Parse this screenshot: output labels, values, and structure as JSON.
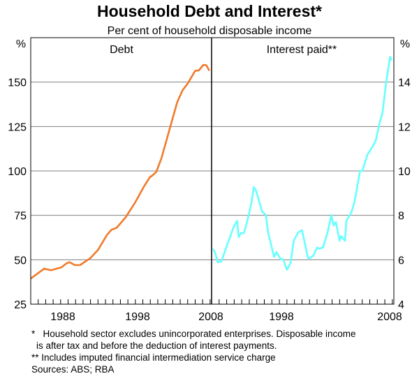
{
  "chart_data": [
    {
      "type": "line",
      "title": "Household Debt and Interest*",
      "subtitle": "Per cent of household disposable income",
      "panel_label": "Debt",
      "ylabel": "%",
      "ylim": [
        25,
        175
      ],
      "yticks": [
        25,
        50,
        75,
        100,
        125,
        150
      ],
      "xlim": [
        1984.5,
        2008.7
      ],
      "xtick_labels": [
        "1988",
        "1998",
        "2008"
      ],
      "grid": true,
      "color": "#F07A2A",
      "series": [
        {
          "name": "Debt",
          "x": [
            1984.5,
            1986.3,
            1987.2,
            1988.6,
            1989.3,
            1989.7,
            1990.4,
            1991.1,
            1992.5,
            1993.5,
            1994.7,
            1995.3,
            1996.0,
            1997.2,
            1998.5,
            1999.7,
            2000.5,
            2000.6,
            2001.3,
            2002.0,
            2002.7,
            2003.4,
            2004.1,
            2004.8,
            2005.5,
            2006.5,
            2007.0,
            2007.6,
            2008.0,
            2008.4
          ],
          "y": [
            39.4,
            45.0,
            44.1,
            45.7,
            48.0,
            48.6,
            47.0,
            47.0,
            51.0,
            55.5,
            64.0,
            66.9,
            68.0,
            73.9,
            82.4,
            91.6,
            96.8,
            96.8,
            99.4,
            107.3,
            117.8,
            128.3,
            138.7,
            145.3,
            149.2,
            156.4,
            156.6,
            159.7,
            159.5,
            156.4
          ]
        }
      ]
    },
    {
      "type": "line",
      "panel_label": "Interest paid**",
      "ylabel": "%",
      "ylim": [
        4,
        16
      ],
      "yticks": [
        4,
        6,
        8,
        10,
        12,
        14
      ],
      "xlim": [
        1984.5,
        2008.7
      ],
      "xtick_labels": [
        "1998",
        "2008"
      ],
      "grid": true,
      "color": "#66FFFF",
      "series": [
        {
          "name": "Interest paid",
          "x": [
            1984.7,
            1985.0,
            1985.3,
            1985.8,
            1986.6,
            1987.5,
            1987.9,
            1988.1,
            1988.4,
            1988.8,
            1989.4,
            1989.8,
            1990.1,
            1990.4,
            1991.2,
            1991.7,
            1992.0,
            1992.8,
            1993.1,
            1993.7,
            1994.0,
            1994.5,
            1995.0,
            1995.4,
            1996.0,
            1996.5,
            1996.8,
            1997.3,
            1997.6,
            1998.0,
            1998.5,
            1998.8,
            1999.3,
            1999.9,
            2000.4,
            2000.7,
            2001.0,
            2001.5,
            2001.7,
            2002.2,
            2002.4,
            2003.1,
            2003.5,
            2004.2,
            2004.5,
            2005.2,
            2005.8,
            2006.3,
            2006.8,
            2007.2,
            2007.7,
            2008.2,
            2008.4
          ],
          "y": [
            6.49,
            6.29,
            5.89,
            5.92,
            6.7,
            7.54,
            7.75,
            7.02,
            7.2,
            7.2,
            7.96,
            8.6,
            9.27,
            9.12,
            8.17,
            8.02,
            7.23,
            6.13,
            6.34,
            6.02,
            6.02,
            5.55,
            5.86,
            6.86,
            7.23,
            7.33,
            6.86,
            6.08,
            6.08,
            6.18,
            6.55,
            6.5,
            6.55,
            7.23,
            8.02,
            7.54,
            7.7,
            6.86,
            7.07,
            6.86,
            7.75,
            8.17,
            8.64,
            10.0,
            10.0,
            10.74,
            11.05,
            11.37,
            12.15,
            12.63,
            14.04,
            15.14,
            14.98
          ]
        }
      ]
    }
  ],
  "footnotes": {
    "note1_line1": "*   Household sector excludes unincorporated enterprises. Disposable income",
    "note1_line2": "is after tax and before the deduction of interest payments.",
    "note2": "** Includes imputed financial intermediation service charge",
    "sources": "Sources: ABS; RBA"
  }
}
